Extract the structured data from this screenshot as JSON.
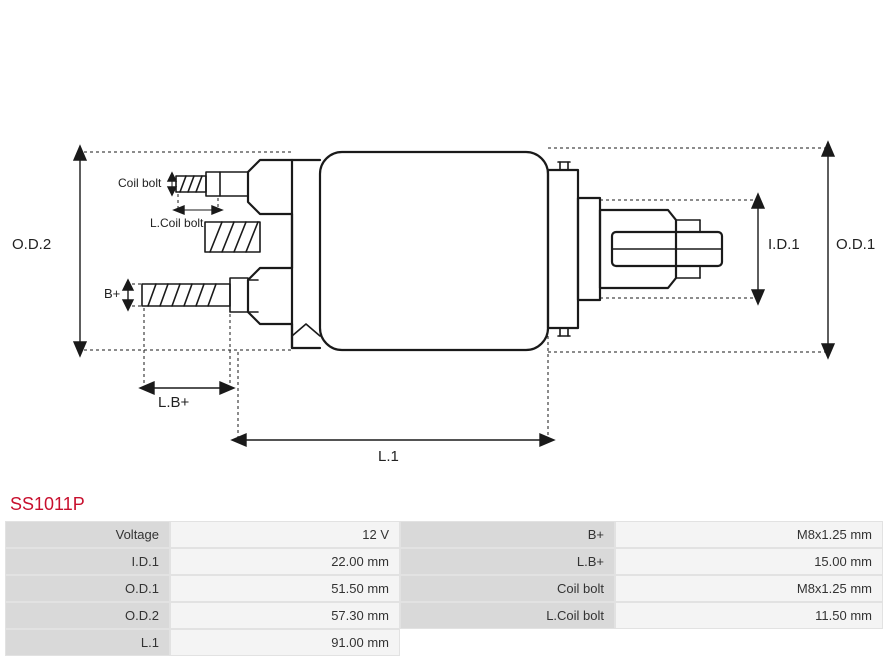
{
  "part_number": "SS1011P",
  "diagram": {
    "labels": {
      "od2": "O.D.2",
      "od1": "O.D.1",
      "id1": "I.D.1",
      "l1": "L.1",
      "lb_plus": "L.B+",
      "b_plus": "B+",
      "coil_bolt": "Coil bolt",
      "l_coil_bolt": "L.Coil bolt"
    },
    "stroke_color": "#1a1a1a",
    "stroke_width_main": 2.2,
    "stroke_width_thin": 1.2,
    "dash": "4,3"
  },
  "specs": {
    "left": [
      {
        "label": "Voltage",
        "value": "12 V"
      },
      {
        "label": "I.D.1",
        "value": "22.00 mm"
      },
      {
        "label": "O.D.1",
        "value": "51.50 mm"
      },
      {
        "label": "O.D.2",
        "value": "57.30 mm"
      },
      {
        "label": "L.1",
        "value": "91.00 mm"
      }
    ],
    "right": [
      {
        "label": "B+",
        "value": "M8x1.25 mm"
      },
      {
        "label": "L.B+",
        "value": "15.00 mm"
      },
      {
        "label": "Coil bolt",
        "value": "M8x1.25 mm"
      },
      {
        "label": "L.Coil bolt",
        "value": "11.50 mm"
      }
    ]
  },
  "table_style": {
    "label_bg": "#d9d9d9",
    "value_bg": "#f4f4f4",
    "border_color": "#e2e2e2",
    "title_color": "#c8102e"
  }
}
